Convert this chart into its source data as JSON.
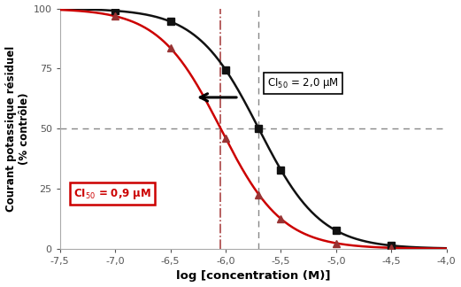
{
  "title": "",
  "xlabel": "log [concentration (M)]",
  "ylabel": "Courant potassique résiduel\n(% contrôle)",
  "xlim": [
    -7.5,
    -4.0
  ],
  "ylim": [
    0,
    100
  ],
  "xticks": [
    -7.5,
    -7.0,
    -6.5,
    -6.0,
    -5.5,
    -5.0,
    -4.5,
    -4.0
  ],
  "xtick_labels": [
    "-7,5",
    "-7,0",
    "-6,5",
    "-6,0",
    "-5,5",
    "-5,0",
    "-4,5",
    "-4,0"
  ],
  "yticks": [
    0,
    25,
    50,
    75,
    100
  ],
  "black_ic50_log": -5.7,
  "red_ic50_log": -6.045,
  "black_hill": 1.55,
  "red_hill": 1.55,
  "black_color": "#111111",
  "red_color": "#cc0000",
  "red_marker_color": "#993333",
  "hline_y": 50,
  "ci50_black_label": "CI$_{50}$ = 2,0 μM",
  "ci50_red_label": "CI$_{50}$ = 0,9 μM",
  "background_color": "#ffffff",
  "black_points_x": [
    -7.0,
    -6.5,
    -6.0,
    -5.7,
    -5.5,
    -5.0,
    -4.5
  ],
  "red_points_x": [
    -7.0,
    -6.5,
    -6.0,
    -5.7,
    -5.5,
    -5.0,
    -4.5
  ]
}
